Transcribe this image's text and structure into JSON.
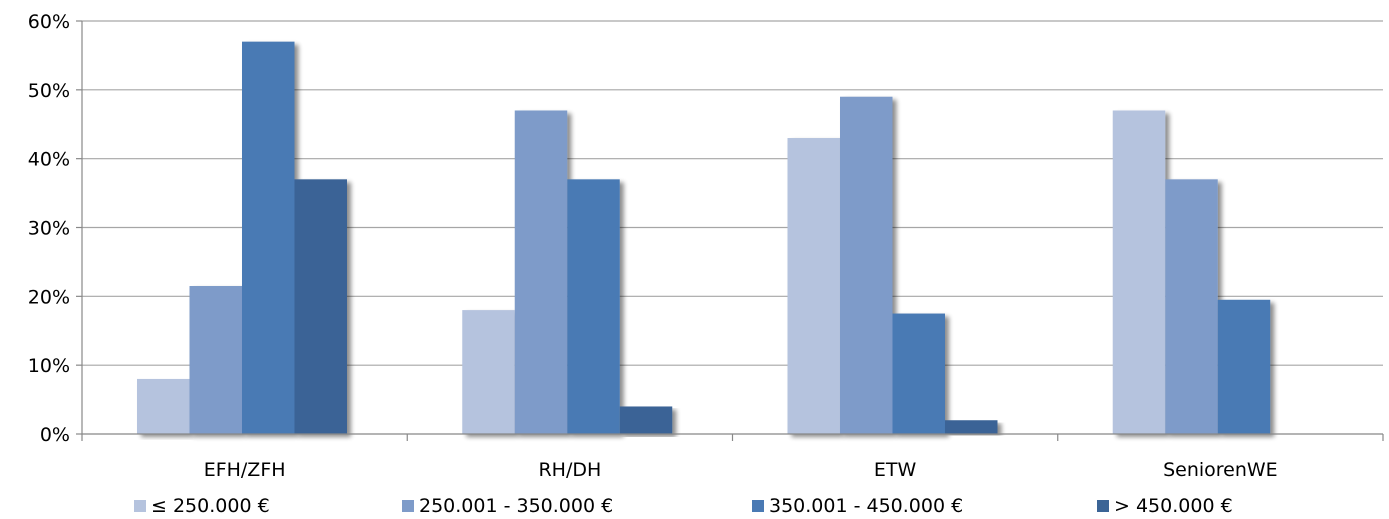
{
  "chart_data": {
    "type": "bar",
    "categories": [
      "EFH/ZFH",
      "RH/DH",
      "ETW",
      "SeniorenWE"
    ],
    "series": [
      {
        "name": "≤ 250.000 €",
        "values": [
          8,
          18,
          43,
          47
        ],
        "color": "#b5c3de"
      },
      {
        "name": "250.001 - 350.000 €",
        "values": [
          21.5,
          47,
          49,
          37
        ],
        "color": "#7e9bc9"
      },
      {
        "name": "350.001 - 450.000 €",
        "values": [
          57,
          37,
          17.5,
          19.5
        ],
        "color": "#4a7ab4"
      },
      {
        "name": "> 450.000 €",
        "values": [
          37,
          4,
          2,
          0
        ],
        "color": "#3b6496"
      }
    ],
    "yticks": [
      "0%",
      "10%",
      "20%",
      "30%",
      "40%",
      "50%",
      "60%"
    ],
    "ylim": [
      0,
      60
    ],
    "grid": true,
    "legend_position": "bottom"
  }
}
